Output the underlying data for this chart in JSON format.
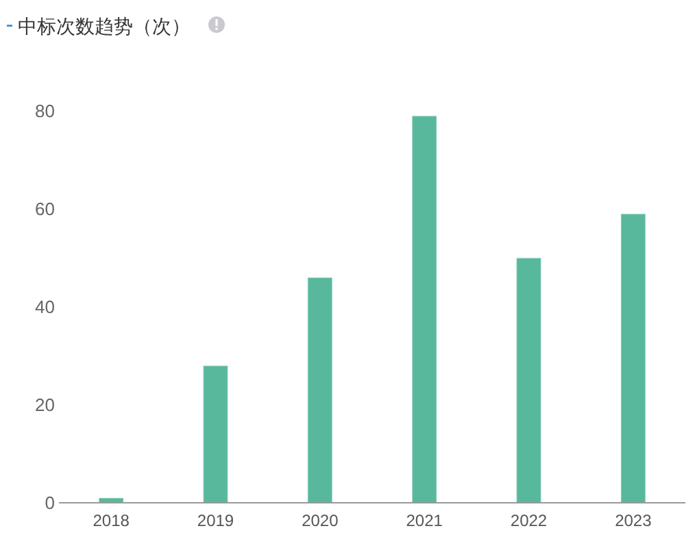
{
  "chart_data": {
    "type": "bar",
    "title": "中标次数趋势（次）",
    "categories": [
      "2018",
      "2019",
      "2020",
      "2021",
      "2022",
      "2023"
    ],
    "values": [
      1,
      28,
      46,
      79,
      50,
      59
    ],
    "color": "#57b89c",
    "ylim": [
      0,
      80
    ],
    "yticks": [
      0,
      20,
      40,
      60,
      80
    ],
    "grid": false
  }
}
